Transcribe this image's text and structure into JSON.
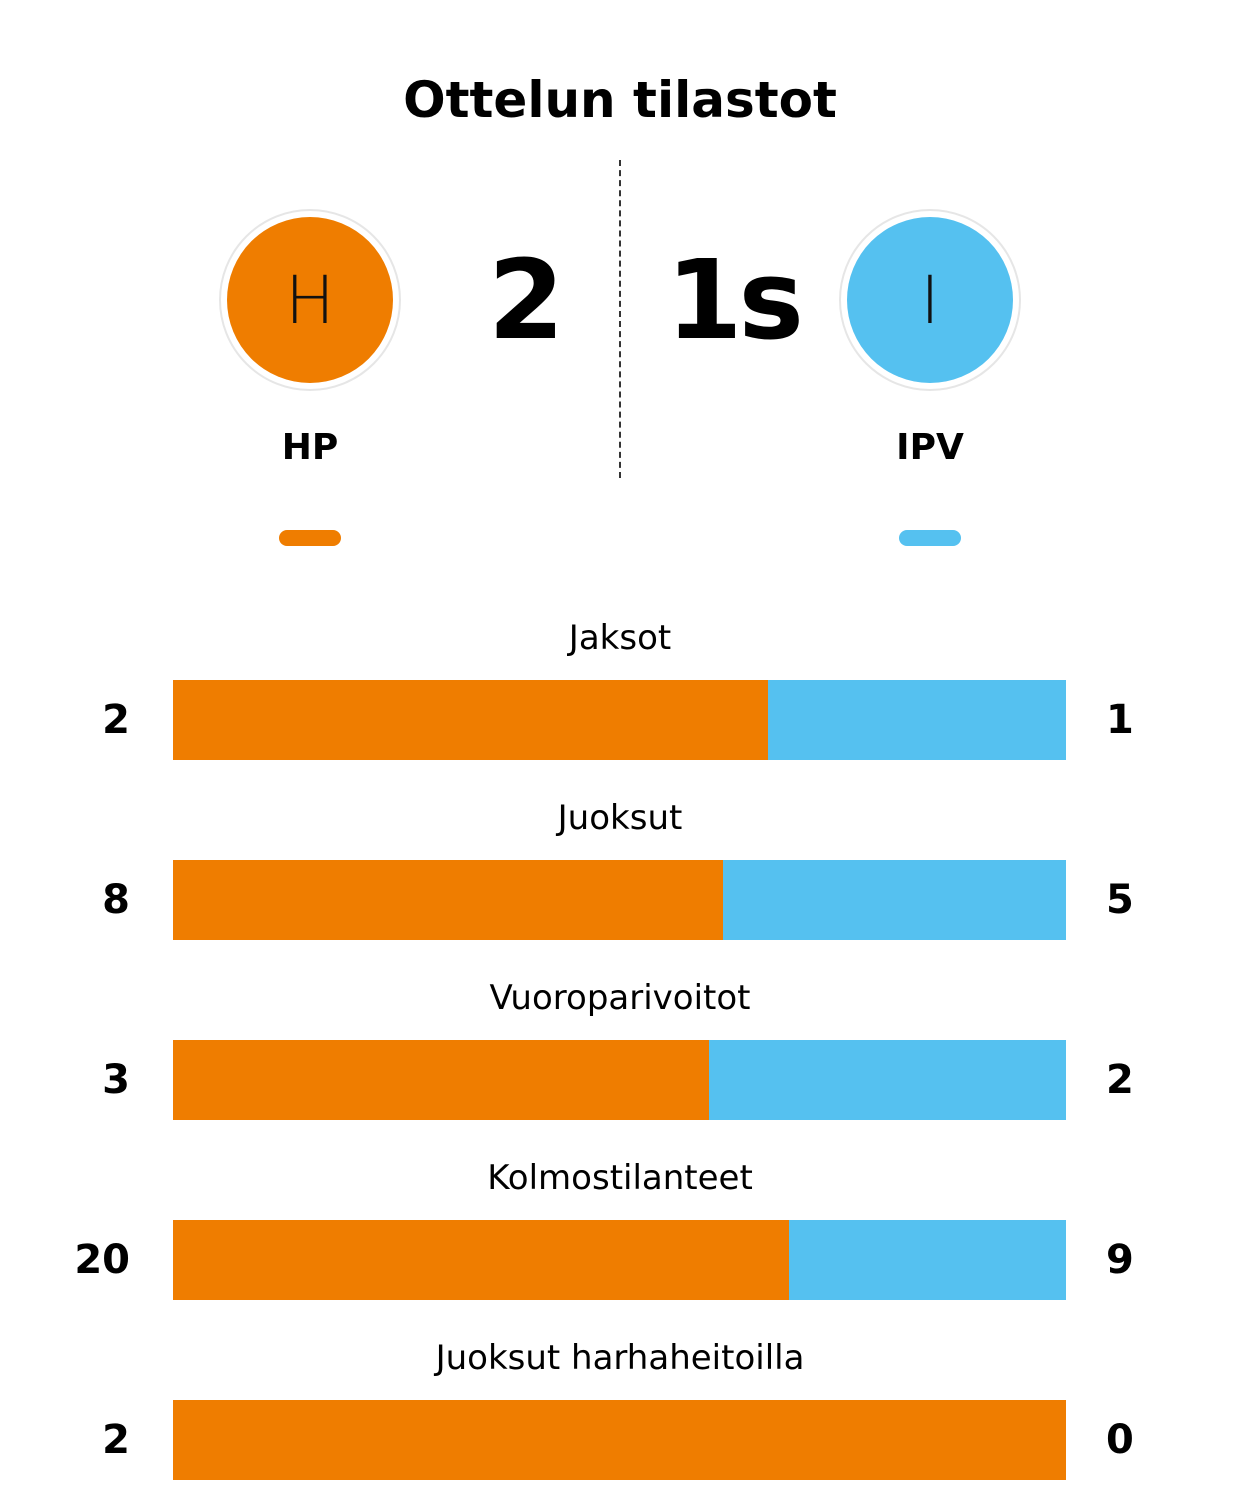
{
  "title": "Ottelun tilastot",
  "colors": {
    "home": "#ef7d00",
    "away": "#55c1f0"
  },
  "home": {
    "initial": "H",
    "name": "HP",
    "score": "2"
  },
  "away": {
    "initial": "I",
    "name": "IPV",
    "score": "1s"
  },
  "chart_data": {
    "type": "bar",
    "orientation": "horizontal-stacked-percentage",
    "title": "Ottelun tilastot",
    "series": [
      {
        "name": "HP",
        "color": "#ef7d00"
      },
      {
        "name": "IPV",
        "color": "#55c1f0"
      }
    ],
    "categories": [
      "Jaksot",
      "Juoksut",
      "Vuoroparivoitot",
      "Kolmostilanteet",
      "Juoksut harhaheitoilla"
    ],
    "rows": [
      {
        "label": "Jaksot",
        "home": 2,
        "away": 1
      },
      {
        "label": "Juoksut",
        "home": 8,
        "away": 5
      },
      {
        "label": "Vuoroparivoitot",
        "home": 3,
        "away": 2
      },
      {
        "label": "Kolmostilanteet",
        "home": 20,
        "away": 9
      },
      {
        "label": "Juoksut harhaheitoilla",
        "home": 2,
        "away": 0
      }
    ]
  }
}
